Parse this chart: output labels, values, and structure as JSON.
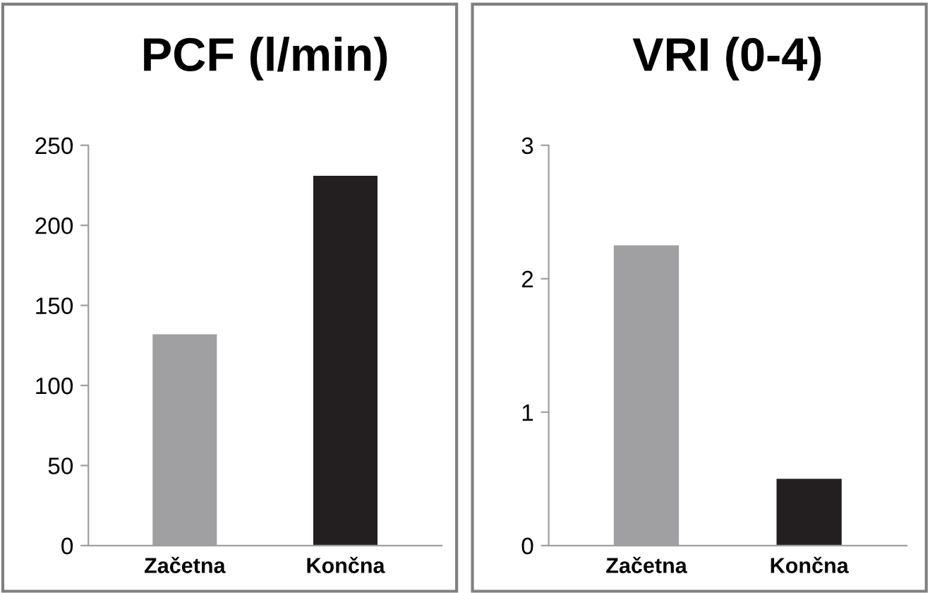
{
  "chart_data": [
    {
      "type": "bar",
      "title": "PCF (l/min)",
      "categories": [
        "Začetna",
        "Končna"
      ],
      "values": [
        132,
        231
      ],
      "colors": [
        "#a0a0a2",
        "#231f20"
      ],
      "ylim": [
        0,
        250
      ],
      "yticks": [
        0,
        50,
        100,
        150,
        200,
        250
      ],
      "grid": false
    },
    {
      "type": "bar",
      "title": "VRI (0-4)",
      "categories": [
        "Začetna",
        "Končna"
      ],
      "values": [
        2.25,
        0.5
      ],
      "colors": [
        "#a0a0a2",
        "#231f20"
      ],
      "ylim": [
        0,
        3
      ],
      "yticks": [
        0,
        1,
        2,
        3
      ],
      "grid": false
    }
  ]
}
